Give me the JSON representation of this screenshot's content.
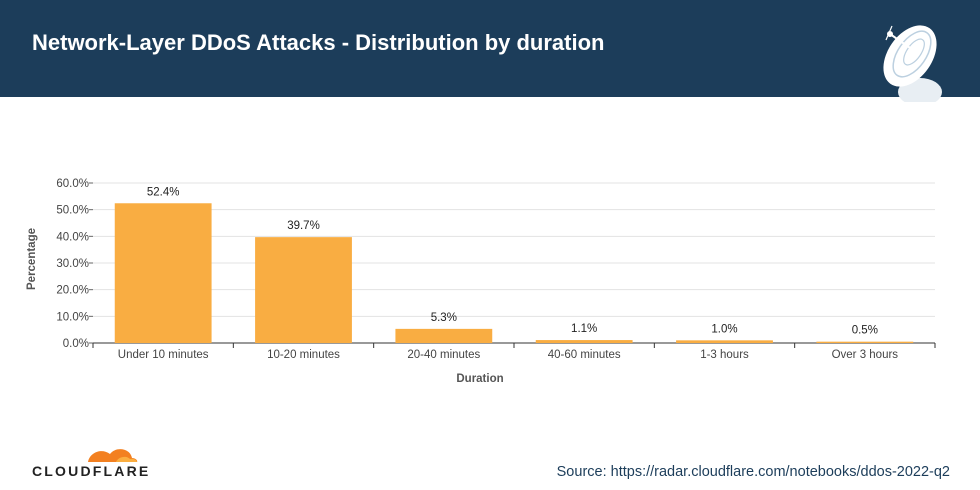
{
  "header": {
    "title": "Network-Layer DDoS Attacks - Distribution by duration",
    "background": "#1c3d5a",
    "icon": "radar-dish-icon"
  },
  "chart_data": {
    "type": "bar",
    "title": "",
    "xlabel": "Duration",
    "ylabel": "Percentage",
    "categories": [
      "Under 10 minutes",
      "10-20 minutes",
      "20-40 minutes",
      "40-60 minutes",
      "1-3 hours",
      "Over 3 hours"
    ],
    "values": [
      52.4,
      39.7,
      5.3,
      1.1,
      1.0,
      0.5
    ],
    "value_labels": [
      "52.4%",
      "39.7%",
      "5.3%",
      "1.1%",
      "1.0%",
      "0.5%"
    ],
    "ylim": [
      0,
      60
    ],
    "yticks": [
      0,
      10,
      20,
      30,
      40,
      50,
      60
    ],
    "ytick_labels": [
      "0.0%",
      "10.0%",
      "20.0%",
      "30.0%",
      "40.0%",
      "50.0%",
      "60.0%"
    ],
    "grid": true,
    "bar_color": "#f9ad42"
  },
  "footer": {
    "logo_text": "CLOUDFLARE",
    "logo_icon": "cloudflare-cloud-icon",
    "source": "Source: https://radar.cloudflare.com/notebooks/ddos-2022-q2"
  }
}
